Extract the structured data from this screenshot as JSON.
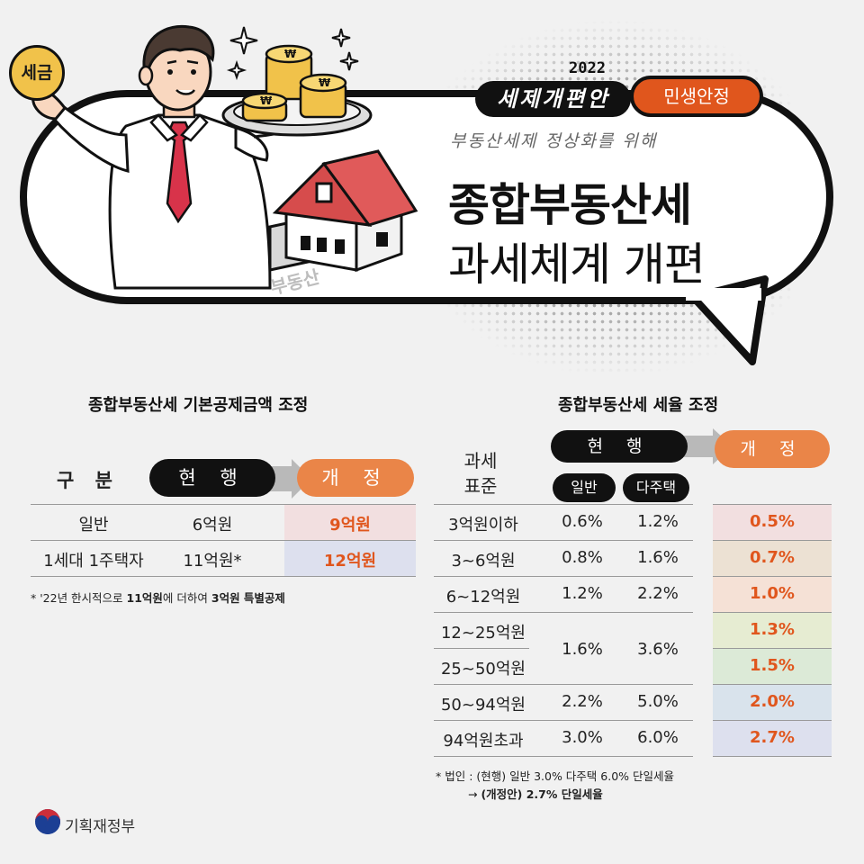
{
  "header": {
    "badge": "세금",
    "year": "2022",
    "campaign": "세제개편안",
    "tag": "민생안정",
    "subtitle": "부동산세제 정상화를 위해",
    "title_line1": "종합부동산세",
    "title_line2": "과세체계 개편",
    "house_label": "부동산"
  },
  "left": {
    "section_title": "종합부동산세 기본공제금액 조정",
    "header": {
      "col1": "구 분",
      "current": "현 행",
      "revised": "개 정"
    },
    "rows": [
      {
        "label": "일반",
        "current": "6억원",
        "revised": "9억원"
      },
      {
        "label": "1세대 1주택자",
        "current": "11억원*",
        "revised": "12억원"
      }
    ],
    "note_pre": "* '22년 한시적으로 ",
    "note_b1": "11억원",
    "note_mid": "에 더하여 ",
    "note_b2": "3억원 특별공제"
  },
  "right": {
    "section_title": "종합부동산세 세율 조정",
    "header": {
      "base_line1": "과세",
      "base_line2": "표준",
      "current": "현 행",
      "revised": "개 정",
      "general": "일반",
      "multi": "다주택"
    },
    "rows": [
      {
        "base": "3억원이하",
        "general": "0.6%",
        "multi": "1.2%",
        "revised": "0.5%"
      },
      {
        "base": "3~6억원",
        "general": "0.8%",
        "multi": "1.6%",
        "revised": "0.7%"
      },
      {
        "base": "6~12억원",
        "general": "1.2%",
        "multi": "2.2%",
        "revised": "1.0%"
      },
      {
        "base": "12~25억원",
        "general": "1.6%",
        "multi": "3.6%",
        "revised": "1.3%"
      },
      {
        "base": "25~50억원",
        "general": "",
        "multi": "",
        "revised": "1.5%"
      },
      {
        "base": "50~94억원",
        "general": "2.2%",
        "multi": "5.0%",
        "revised": "2.0%"
      },
      {
        "base": "94억원초과",
        "general": "3.0%",
        "multi": "6.0%",
        "revised": "2.7%"
      }
    ],
    "note_line1": "* 법인 : (현행) 일반 3.0% 다주택 6.0% 단일세율",
    "note_arrow": "→ ",
    "note_line2": "(개정안) 2.7% 단일세율"
  },
  "footer": {
    "ministry": "기획재정부"
  },
  "colors": {
    "accent": "#e0561d",
    "pill_orange": "#ea8548",
    "black": "#111111",
    "background": "#f1f1f1"
  }
}
